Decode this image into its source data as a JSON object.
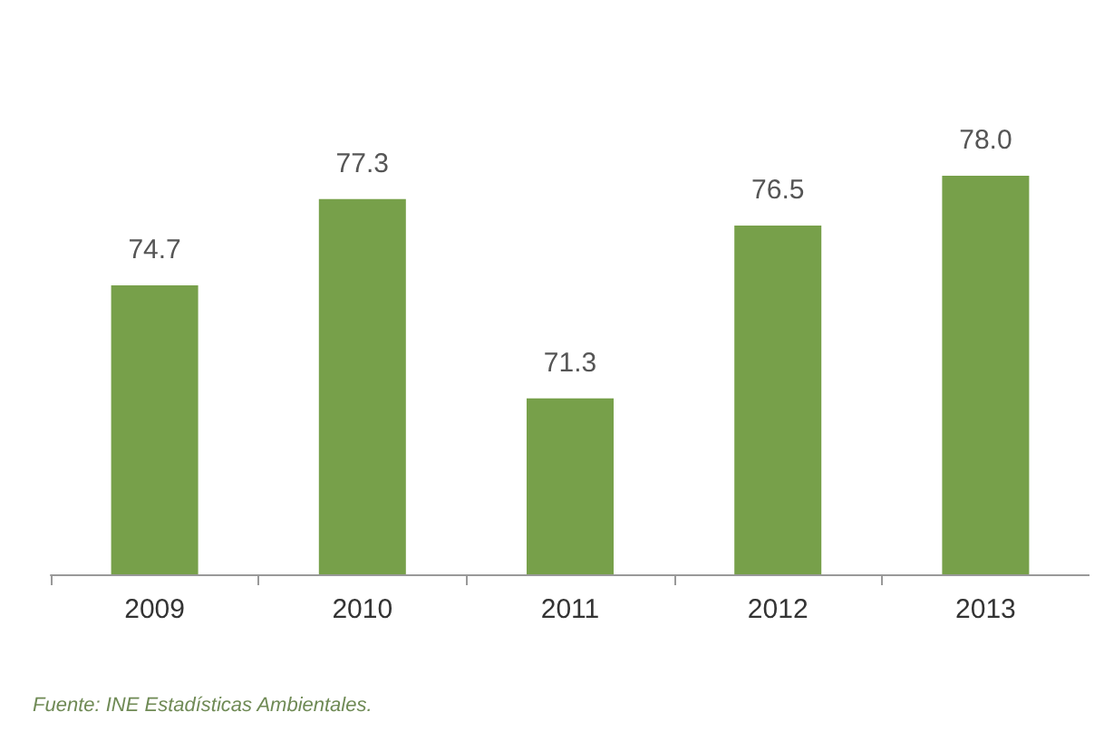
{
  "chart_data": {
    "type": "bar",
    "categories": [
      "2009",
      "2010",
      "2011",
      "2012",
      "2013"
    ],
    "values": [
      74.7,
      77.3,
      71.3,
      76.5,
      78.0
    ],
    "value_labels": [
      "74.7",
      "77.3",
      "71.3",
      "76.5",
      "78.0"
    ],
    "color": "#77a04a",
    "ylim": [
      66,
      78
    ],
    "tick_labels": "x",
    "annotations": [
      "Fuente: INE Estadísticas Ambientales."
    ]
  }
}
